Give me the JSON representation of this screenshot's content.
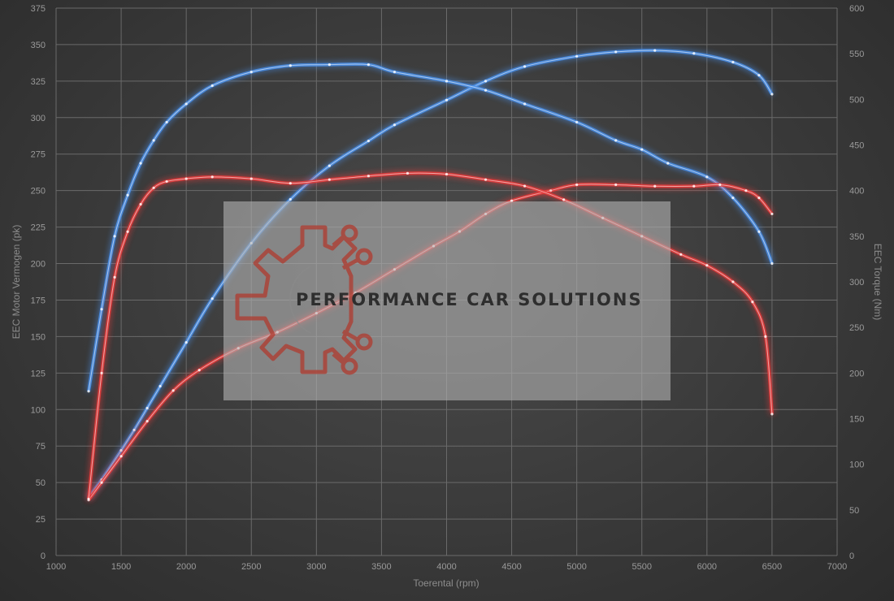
{
  "chart_data": {
    "type": "line",
    "title": "",
    "xlabel": "Toerental (rpm)",
    "ylabel_left": "EEC Motor Vermogen (pk)",
    "ylabel_right": "EEC Torque (Nm)",
    "xlim": [
      1000,
      7000
    ],
    "ylim_left": [
      0,
      375
    ],
    "ylim_right": [
      0,
      600
    ],
    "x_ticks": [
      1000,
      1500,
      2000,
      2500,
      3000,
      3500,
      4000,
      4500,
      5000,
      5500,
      6000,
      6500,
      7000
    ],
    "y_left_ticks": [
      0,
      25,
      50,
      75,
      100,
      125,
      150,
      175,
      200,
      225,
      250,
      275,
      300,
      325,
      350,
      375
    ],
    "y_right_ticks": [
      0,
      50,
      100,
      150,
      200,
      250,
      300,
      350,
      400,
      450,
      500,
      550,
      600
    ],
    "grid": true,
    "colors": {
      "tuned": "#4a8fe8",
      "stock": "#e83a3a",
      "background": "#3c3c3c"
    },
    "series": [
      {
        "axis": "left",
        "color": "#4a8fe8",
        "x": [
          1250,
          1350,
          1500,
          1600,
          1700,
          1800,
          2000,
          2200,
          2500,
          2800,
          3100,
          3400,
          3600,
          4000,
          4300,
          4600,
          5000,
          5300,
          5600,
          5900,
          6200,
          6400,
          6500
        ],
        "y": [
          40,
          52,
          72,
          86,
          101,
          116,
          146,
          176,
          214,
          244,
          267,
          284,
          295,
          312,
          325,
          335,
          342,
          345,
          346,
          344,
          338,
          329,
          316
        ]
      },
      {
        "axis": "right",
        "color": "#4a8fe8",
        "x": [
          1250,
          1350,
          1450,
          1550,
          1650,
          1750,
          1850,
          2000,
          2200,
          2500,
          2800,
          3100,
          3400,
          3600,
          4000,
          4300,
          4600,
          5000,
          5300,
          5500,
          5700,
          6000,
          6200,
          6400,
          6500
        ],
        "y": [
          180,
          270,
          350,
          395,
          430,
          455,
          475,
          495,
          515,
          530,
          537,
          538,
          538,
          530,
          520,
          510,
          495,
          475,
          455,
          445,
          430,
          415,
          392,
          355,
          320
        ]
      },
      {
        "axis": "left",
        "color": "#e83a3a",
        "x": [
          1250,
          1350,
          1500,
          1700,
          1900,
          2100,
          2400,
          2700,
          3000,
          3300,
          3600,
          3900,
          4100,
          4300,
          4500,
          4800,
          5000,
          5300,
          5600,
          5900,
          6100,
          6300,
          6400,
          6500
        ],
        "y": [
          38,
          50,
          68,
          92,
          113,
          127,
          142,
          153,
          166,
          180,
          196,
          212,
          222,
          234,
          243,
          250,
          254,
          254,
          253,
          253,
          254,
          250,
          245,
          234
        ]
      },
      {
        "axis": "right",
        "color": "#e83a3a",
        "x": [
          1250,
          1350,
          1450,
          1550,
          1650,
          1750,
          1850,
          2000,
          2200,
          2500,
          2800,
          3100,
          3400,
          3700,
          4000,
          4300,
          4600,
          4900,
          5200,
          5500,
          5800,
          6000,
          6200,
          6350,
          6450,
          6500
        ],
        "y": [
          62,
          200,
          305,
          355,
          385,
          403,
          410,
          413,
          415,
          413,
          408,
          412,
          416,
          419,
          418,
          412,
          405,
          390,
          370,
          350,
          330,
          318,
          300,
          278,
          240,
          155
        ]
      }
    ]
  },
  "watermark": {
    "text": "PERFORMANCE CAR SOLUTIONS",
    "logo_color": "#c0392b"
  }
}
